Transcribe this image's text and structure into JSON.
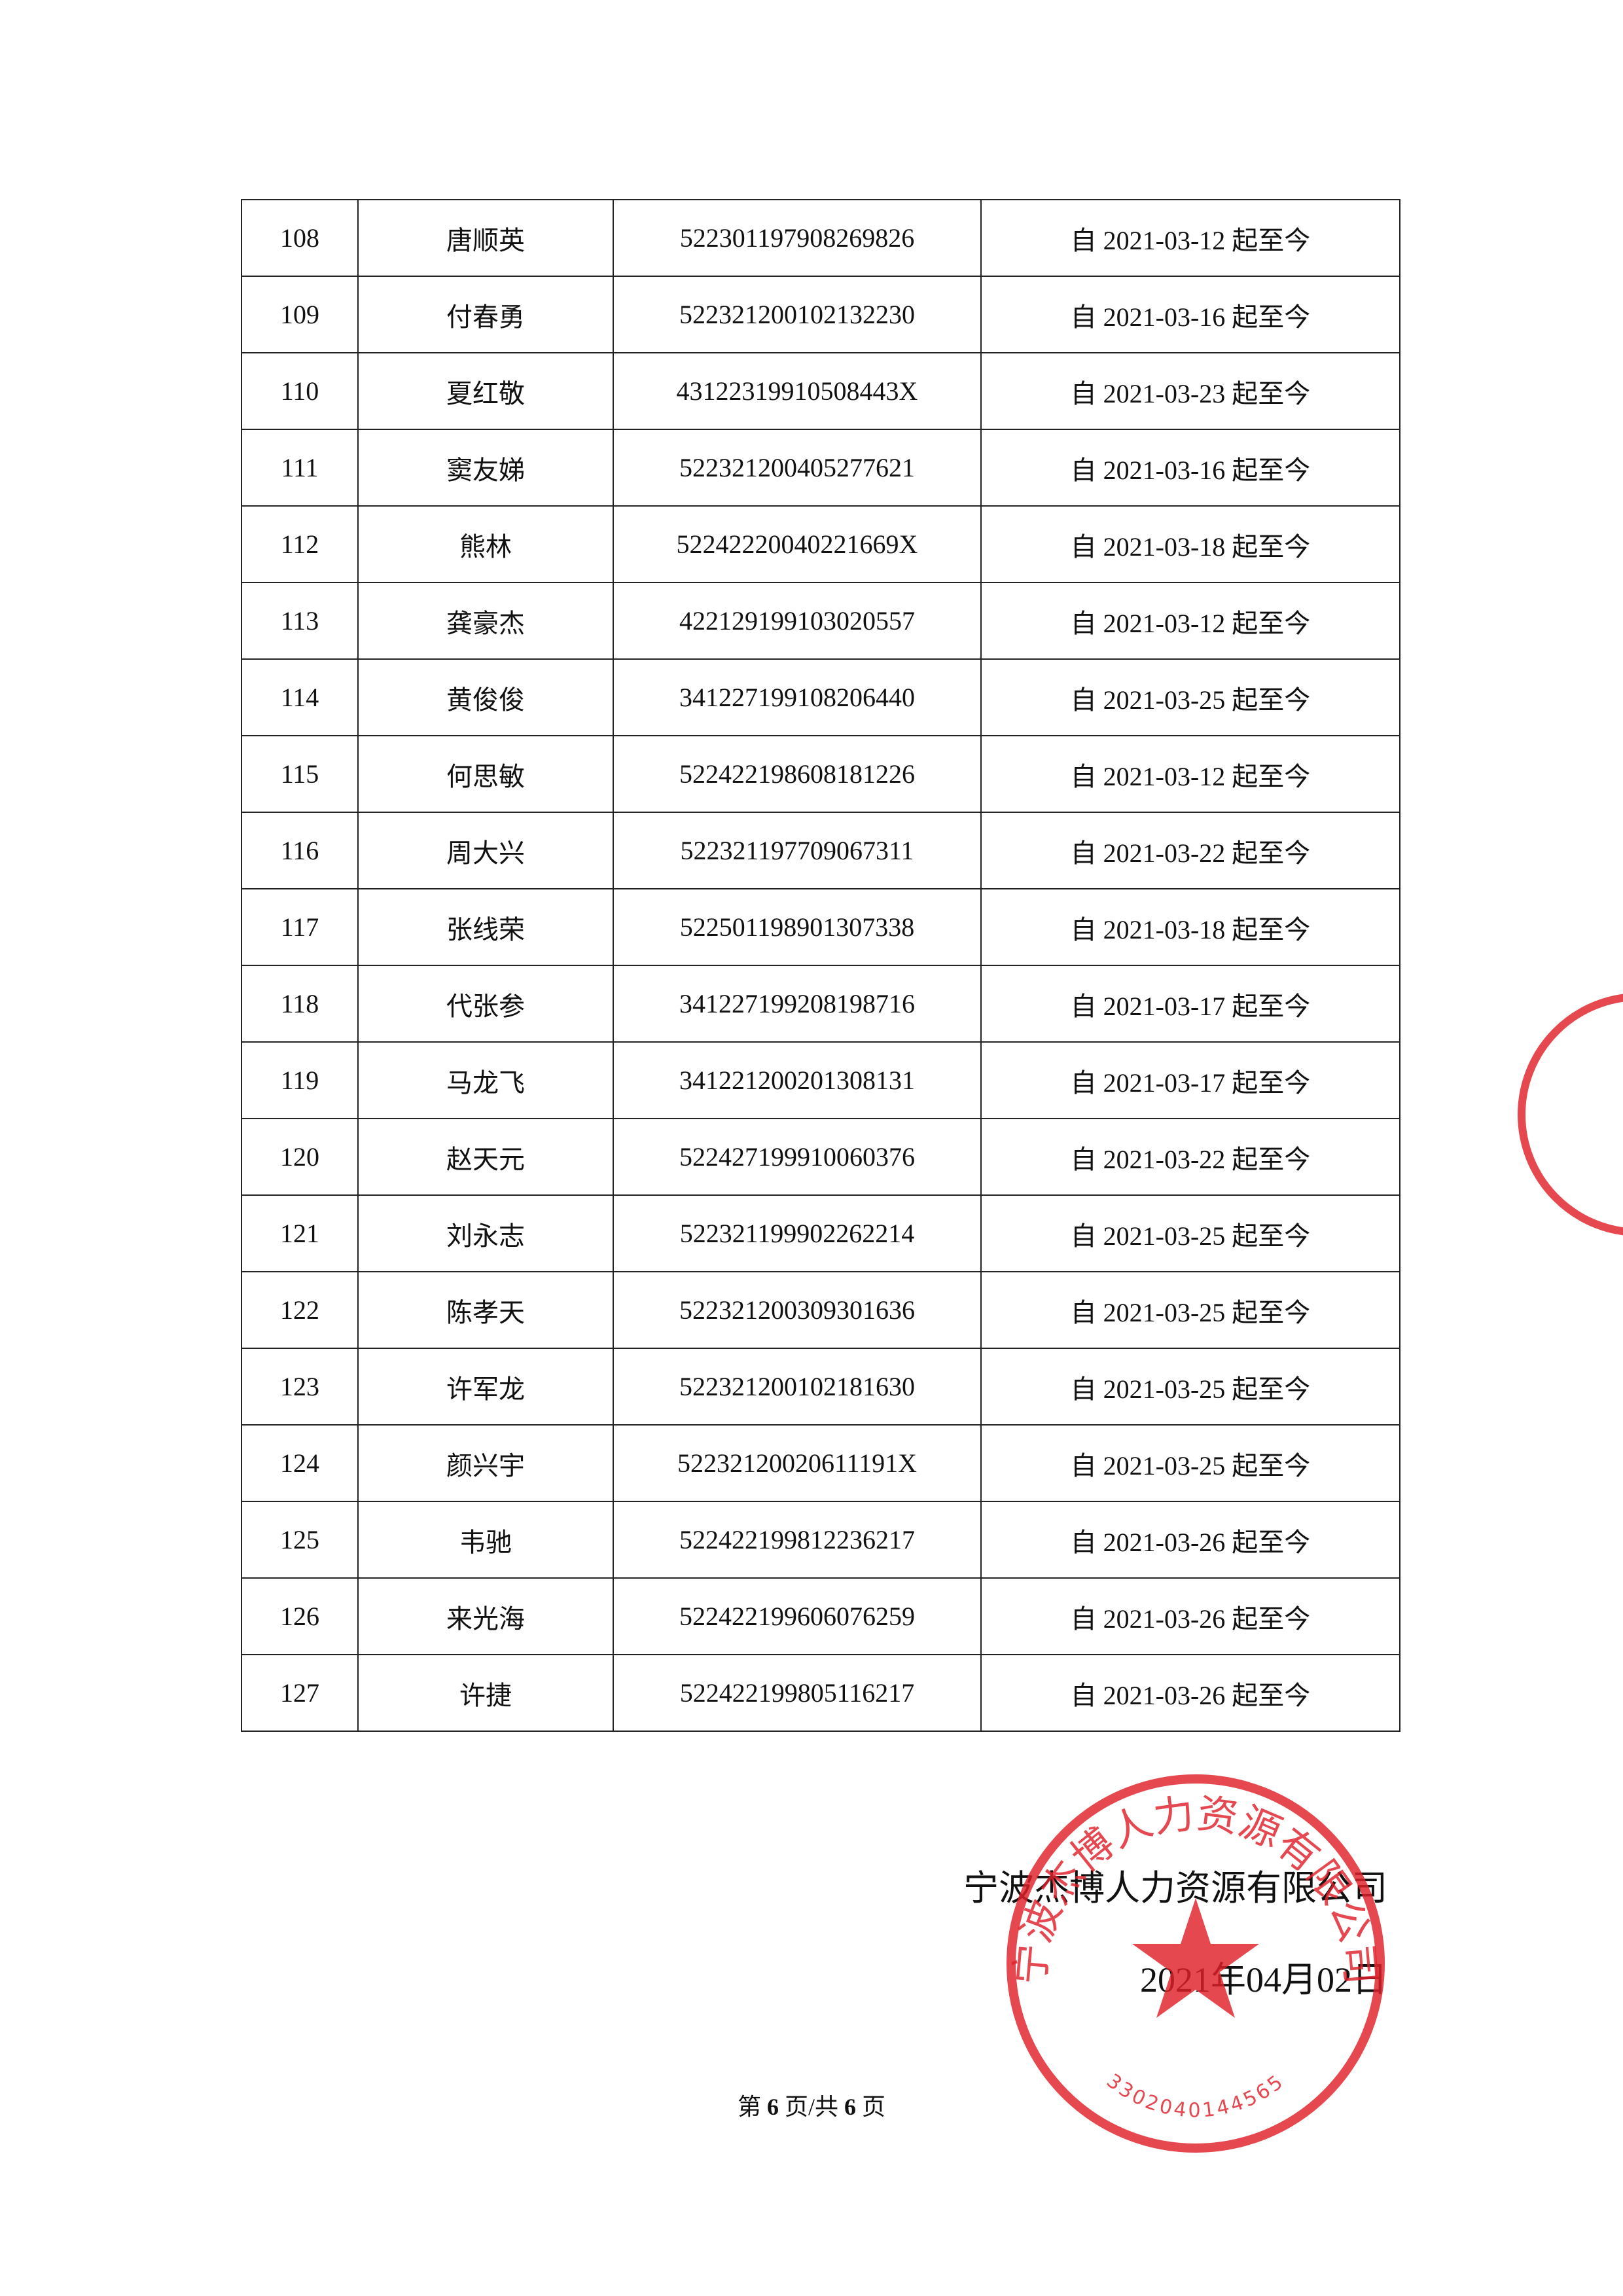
{
  "table": {
    "rows": [
      [
        "108",
        "唐顺英",
        "522301197908269826",
        "自 2021-03-12 起至今"
      ],
      [
        "109",
        "付春勇",
        "522321200102132230",
        "自 2021-03-16 起至今"
      ],
      [
        "110",
        "夏红敬",
        "43122319910508443X",
        "自 2021-03-23 起至今"
      ],
      [
        "111",
        "窦友娣",
        "522321200405277621",
        "自 2021-03-16 起至今"
      ],
      [
        "112",
        "熊林",
        "52242220040221669X",
        "自 2021-03-18 起至今"
      ],
      [
        "113",
        "龚豪杰",
        "422129199103020557",
        "自 2021-03-12 起至今"
      ],
      [
        "114",
        "黄俊俊",
        "341227199108206440",
        "自 2021-03-25 起至今"
      ],
      [
        "115",
        "何思敏",
        "522422198608181226",
        "自 2021-03-12 起至今"
      ],
      [
        "116",
        "周大兴",
        "522321197709067311",
        "自 2021-03-22 起至今"
      ],
      [
        "117",
        "张线荣",
        "522501198901307338",
        "自 2021-03-18 起至今"
      ],
      [
        "118",
        "代张参",
        "341227199208198716",
        "自 2021-03-17 起至今"
      ],
      [
        "119",
        "马龙飞",
        "341221200201308131",
        "自 2021-03-17 起至今"
      ],
      [
        "120",
        "赵天元",
        "522427199910060376",
        "自 2021-03-22 起至今"
      ],
      [
        "121",
        "刘永志",
        "522321199902262214",
        "自 2021-03-25 起至今"
      ],
      [
        "122",
        "陈孝天",
        "522321200309301636",
        "自 2021-03-25 起至今"
      ],
      [
        "123",
        "许军龙",
        "522321200102181630",
        "自 2021-03-25 起至今"
      ],
      [
        "124",
        "颜兴宇",
        "52232120020611191X",
        "自 2021-03-25 起至今"
      ],
      [
        "125",
        "韦驰",
        "522422199812236217",
        "自 2021-03-26 起至今"
      ],
      [
        "126",
        "来光海",
        "522422199606076259",
        "自 2021-03-26 起至今"
      ],
      [
        "127",
        "许捷",
        "522422199805116217",
        "自 2021-03-26 起至今"
      ]
    ]
  },
  "signature": {
    "company": "宁波杰博人力资源有限公司",
    "date": "2021年04月02日"
  },
  "seal": {
    "text": "宁波杰博人力资源有限公司",
    "code": "3302040144565"
  },
  "footer": {
    "prefix": "第",
    "page": "6",
    "middle": "页/共",
    "total": "6",
    "suffix": "页"
  }
}
